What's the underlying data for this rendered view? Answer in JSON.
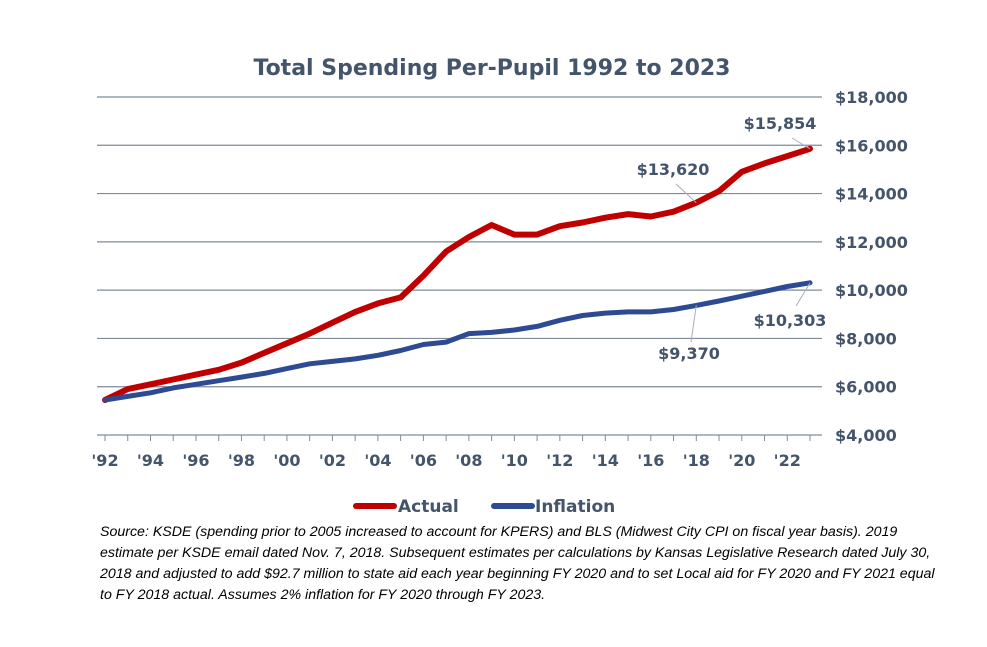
{
  "chart_data": {
    "type": "line",
    "title": "Total Spending Per-Pupil  1992 to 2023",
    "x": [
      1992,
      1993,
      1994,
      1995,
      1996,
      1997,
      1998,
      1999,
      2000,
      2001,
      2002,
      2003,
      2004,
      2005,
      2006,
      2007,
      2008,
      2009,
      2010,
      2011,
      2012,
      2013,
      2014,
      2015,
      2016,
      2017,
      2018,
      2019,
      2020,
      2021,
      2022,
      2023
    ],
    "x_tick_labels": [
      "'92",
      "'94",
      "'96",
      "'98",
      "'00",
      "'02",
      "'04",
      "'06",
      "'08",
      "'10",
      "'12",
      "'14",
      "'16",
      "'18",
      "'20",
      "'22"
    ],
    "y_tick_labels": [
      "$4,000",
      "$6,000",
      "$8,000",
      "$10,000",
      "$12,000",
      "$14,000",
      "$16,000",
      "$18,000"
    ],
    "ylim": [
      4000,
      18000
    ],
    "y_axis_side": "right",
    "grid": true,
    "legend_position": "bottom",
    "series": [
      {
        "name": "Actual",
        "color": "#c00000",
        "values": [
          5450,
          5900,
          6100,
          6300,
          6500,
          6700,
          7000,
          7400,
          7800,
          8200,
          8650,
          9100,
          9450,
          9700,
          10600,
          11600,
          12200,
          12700,
          12300,
          12300,
          12650,
          12800,
          13000,
          13150,
          13050,
          13250,
          13620,
          14100,
          14900,
          15250,
          15550,
          15854
        ]
      },
      {
        "name": "Inflation",
        "color": "#2e4a92",
        "values": [
          5450,
          5600,
          5750,
          5950,
          6100,
          6250,
          6400,
          6550,
          6750,
          6950,
          7050,
          7150,
          7300,
          7500,
          7750,
          7850,
          8200,
          8250,
          8350,
          8500,
          8750,
          8950,
          9050,
          9100,
          9100,
          9200,
          9370,
          9550,
          9750,
          9950,
          10150,
          10303
        ]
      }
    ],
    "annotations": [
      {
        "text": "$15,854",
        "x": 2023,
        "y": 15854,
        "series": "Actual"
      },
      {
        "text": "$13,620",
        "x": 2018,
        "y": 13620,
        "series": "Actual"
      },
      {
        "text": "$9,370",
        "x": 2018,
        "y": 9370,
        "series": "Inflation"
      },
      {
        "text": "$10,303",
        "x": 2023,
        "y": 10303,
        "series": "Inflation"
      }
    ]
  },
  "source_note": "Source: KSDE (spending prior to 2005 increased to account for KPERS) and BLS (Midwest City CPI on fiscal year basis). 2019 estimate per KSDE email dated Nov. 7, 2018. Subsequent estimates per calculations by Kansas Legislative Research dated July 30, 2018 and adjusted to add $92.7 million to state aid each year beginning FY 2020 and to set Local aid for FY 2020 and FY 2021 equal to FY 2018 actual. Assumes 2% inflation for FY 2020 through FY 2023."
}
